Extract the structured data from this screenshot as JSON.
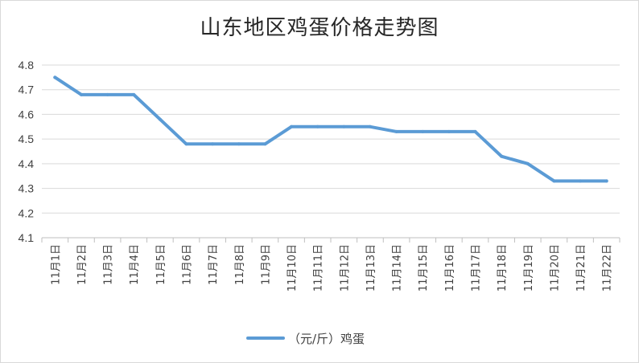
{
  "chart_data": {
    "type": "line",
    "title": "山东地区鸡蛋价格走势图",
    "categories": [
      "11月1日",
      "11月2日",
      "11月3日",
      "11月4日",
      "11月5日",
      "11月6日",
      "11月7日",
      "11月8日",
      "11月9日",
      "11月10日",
      "11月11日",
      "11月12日",
      "11月13日",
      "11月14日",
      "11月15日",
      "11月16日",
      "11月17日",
      "11月18日",
      "11月19日",
      "11月20日",
      "11月21日",
      "11月22日"
    ],
    "series": [
      {
        "name": "（元/斤）鸡蛋",
        "color": "#5B9BD5",
        "values": [
          4.75,
          4.68,
          4.68,
          4.68,
          4.58,
          4.48,
          4.48,
          4.48,
          4.48,
          4.55,
          4.55,
          4.55,
          4.55,
          4.53,
          4.53,
          4.53,
          4.53,
          4.43,
          4.4,
          4.33,
          4.33,
          4.33
        ]
      }
    ],
    "ylim": [
      4.1,
      4.8
    ],
    "yticks": [
      "4.1",
      "4.2",
      "4.3",
      "4.4",
      "4.5",
      "4.6",
      "4.7",
      "4.8"
    ],
    "grid": true,
    "legend": "bottom",
    "xlabel": "",
    "ylabel": ""
  }
}
